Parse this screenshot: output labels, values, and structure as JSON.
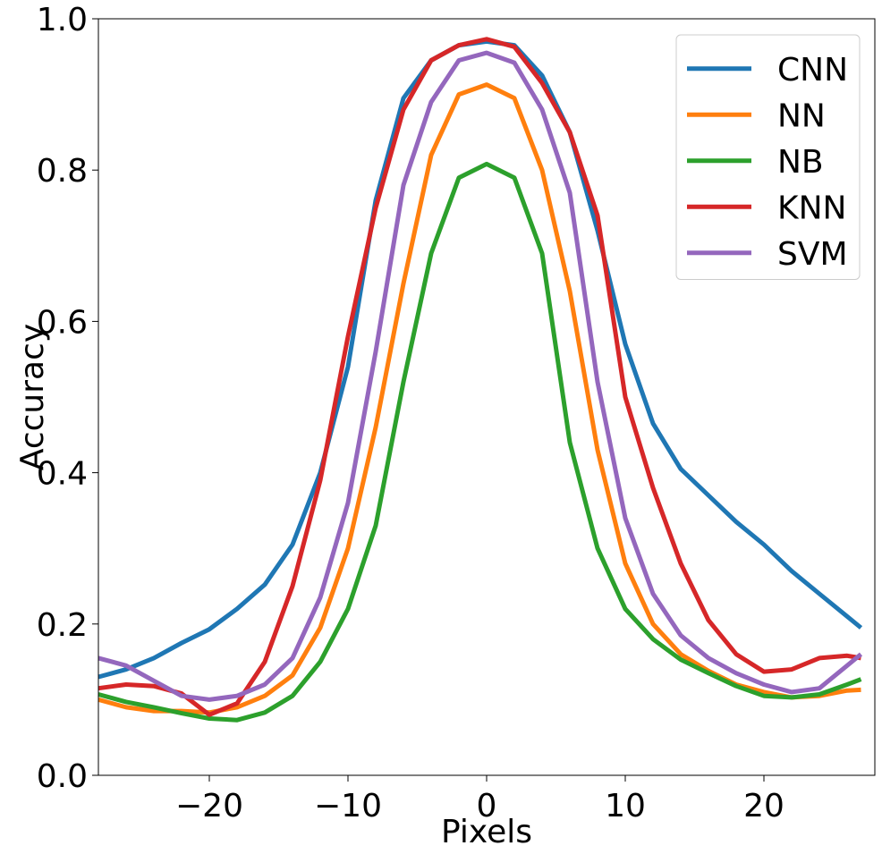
{
  "chart_data": {
    "type": "line",
    "title": "",
    "xlabel": "Pixels",
    "ylabel": "Accuracy",
    "xlim": [
      -28,
      28
    ],
    "ylim": [
      0.0,
      1.0
    ],
    "xticks": [
      -20,
      -10,
      0,
      10,
      20
    ],
    "xtick_labels": [
      "−20",
      "−10",
      "0",
      "10",
      "20"
    ],
    "yticks": [
      0.0,
      0.2,
      0.4,
      0.6,
      0.8,
      1.0
    ],
    "ytick_labels": [
      "0.0",
      "0.2",
      "0.4",
      "0.6",
      "0.8",
      "1.0"
    ],
    "grid": false,
    "legend_position": "top-right",
    "x": [
      -28,
      -26,
      -24,
      -22,
      -20,
      -18,
      -16,
      -14,
      -12,
      -10,
      -8,
      -6,
      -4,
      -2,
      0,
      2,
      4,
      6,
      8,
      10,
      12,
      14,
      16,
      18,
      20,
      22,
      24,
      26,
      27
    ],
    "series": [
      {
        "name": "CNN",
        "color": "#1f77b4",
        "values": [
          0.13,
          0.14,
          0.155,
          0.175,
          0.193,
          0.22,
          0.252,
          0.305,
          0.4,
          0.54,
          0.76,
          0.895,
          0.945,
          0.965,
          0.97,
          0.965,
          0.925,
          0.85,
          0.72,
          0.57,
          0.465,
          0.405,
          0.37,
          0.335,
          0.305,
          0.27,
          0.24,
          0.21,
          0.195
        ]
      },
      {
        "name": "NN",
        "color": "#ff7f0e",
        "values": [
          0.1,
          0.09,
          0.085,
          0.085,
          0.083,
          0.09,
          0.105,
          0.132,
          0.195,
          0.3,
          0.46,
          0.65,
          0.82,
          0.9,
          0.913,
          0.895,
          0.8,
          0.64,
          0.43,
          0.28,
          0.2,
          0.16,
          0.138,
          0.12,
          0.11,
          0.103,
          0.105,
          0.112,
          0.113
        ]
      },
      {
        "name": "NB",
        "color": "#2ca02c",
        "values": [
          0.107,
          0.097,
          0.09,
          0.082,
          0.075,
          0.073,
          0.083,
          0.105,
          0.15,
          0.22,
          0.33,
          0.52,
          0.69,
          0.79,
          0.808,
          0.79,
          0.69,
          0.44,
          0.3,
          0.22,
          0.18,
          0.153,
          0.135,
          0.118,
          0.105,
          0.103,
          0.107,
          0.12,
          0.127
        ]
      },
      {
        "name": "KNN",
        "color": "#d62728",
        "values": [
          0.115,
          0.12,
          0.118,
          0.108,
          0.08,
          0.095,
          0.15,
          0.25,
          0.39,
          0.58,
          0.75,
          0.88,
          0.945,
          0.965,
          0.973,
          0.963,
          0.915,
          0.85,
          0.74,
          0.5,
          0.38,
          0.28,
          0.205,
          0.16,
          0.137,
          0.14,
          0.155,
          0.158,
          0.155
        ]
      },
      {
        "name": "SVM",
        "color": "#9467bd",
        "values": [
          0.155,
          0.145,
          0.125,
          0.105,
          0.1,
          0.105,
          0.12,
          0.155,
          0.235,
          0.36,
          0.56,
          0.78,
          0.89,
          0.945,
          0.955,
          0.942,
          0.88,
          0.77,
          0.52,
          0.34,
          0.24,
          0.185,
          0.155,
          0.135,
          0.12,
          0.11,
          0.115,
          0.145,
          0.16
        ]
      }
    ]
  }
}
